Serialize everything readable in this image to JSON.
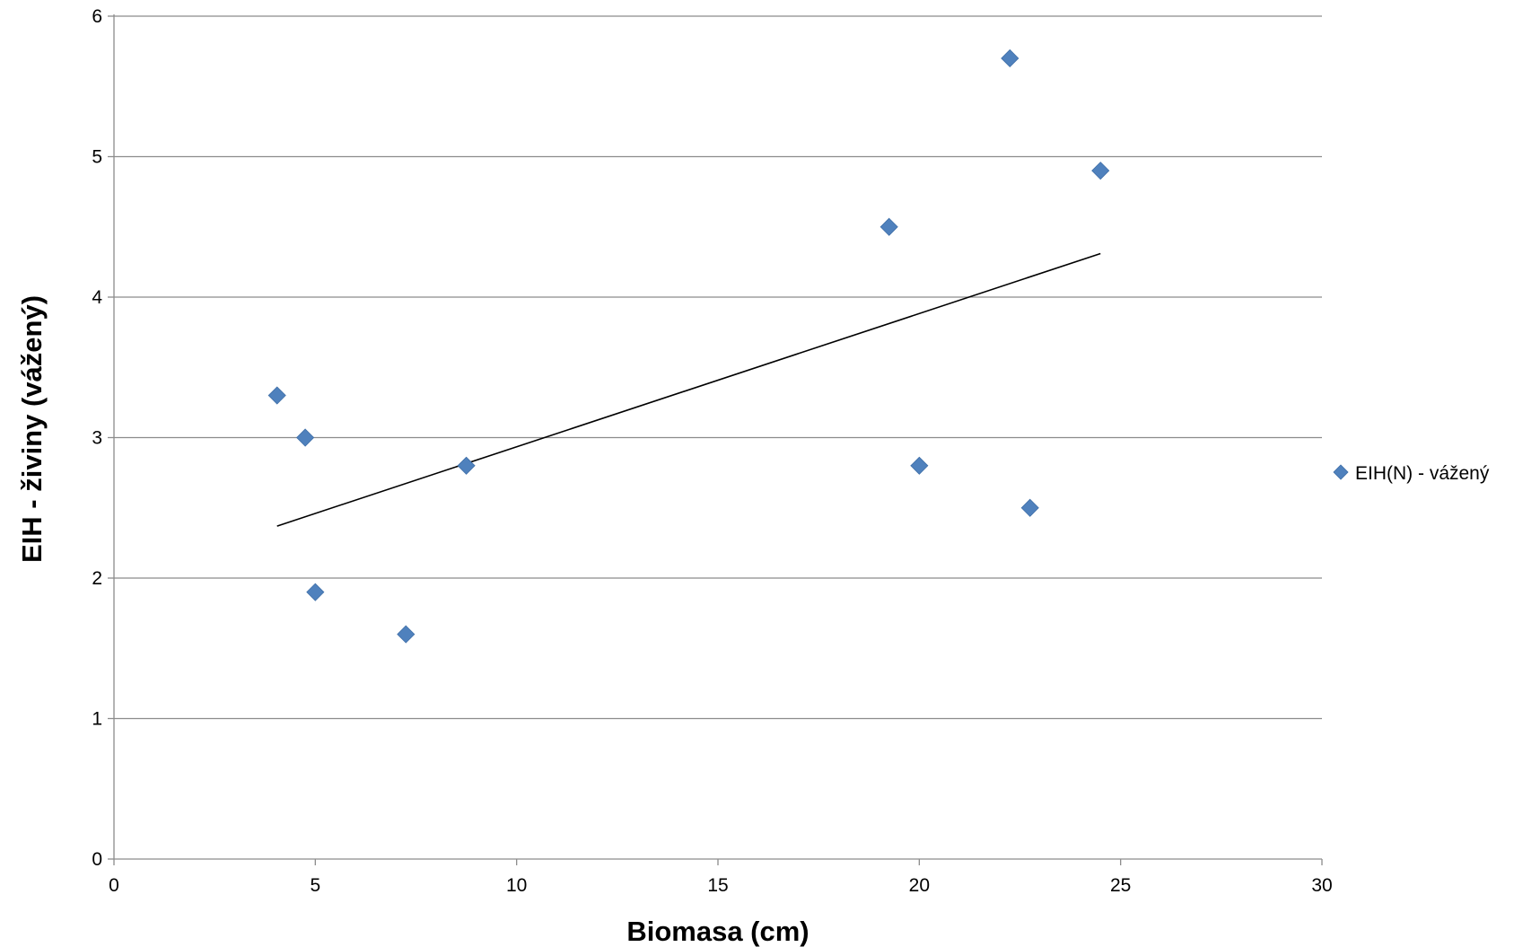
{
  "chart_data": {
    "type": "scatter",
    "title": "",
    "xlabel": "Biomasa (cm)",
    "ylabel": "EIH - živiny (vážený)",
    "xlim": [
      0,
      30
    ],
    "ylim": [
      0,
      6
    ],
    "x_ticks": [
      "0",
      "5",
      "10",
      "15",
      "20",
      "25",
      "30"
    ],
    "y_ticks": [
      "0",
      "1",
      "2",
      "3",
      "4",
      "5",
      "6"
    ],
    "grid": "horizontal",
    "legend_position": "right",
    "series": [
      {
        "name": "EIH(N) - vážený",
        "marker": "diamond",
        "color": "#4F81BD",
        "points": [
          {
            "x": 4.05,
            "y": 3.3
          },
          {
            "x": 4.75,
            "y": 3.0
          },
          {
            "x": 5.0,
            "y": 1.9
          },
          {
            "x": 7.25,
            "y": 1.6
          },
          {
            "x": 8.75,
            "y": 2.8
          },
          {
            "x": 19.25,
            "y": 4.5
          },
          {
            "x": 20.0,
            "y": 2.8
          },
          {
            "x": 22.25,
            "y": 5.7
          },
          {
            "x": 22.75,
            "y": 2.5
          },
          {
            "x": 24.5,
            "y": 4.9
          }
        ]
      }
    ],
    "trendline": {
      "type": "linear",
      "color": "#000000",
      "start": {
        "x": 4.05,
        "y": 2.37
      },
      "end": {
        "x": 24.5,
        "y": 4.31
      }
    }
  }
}
